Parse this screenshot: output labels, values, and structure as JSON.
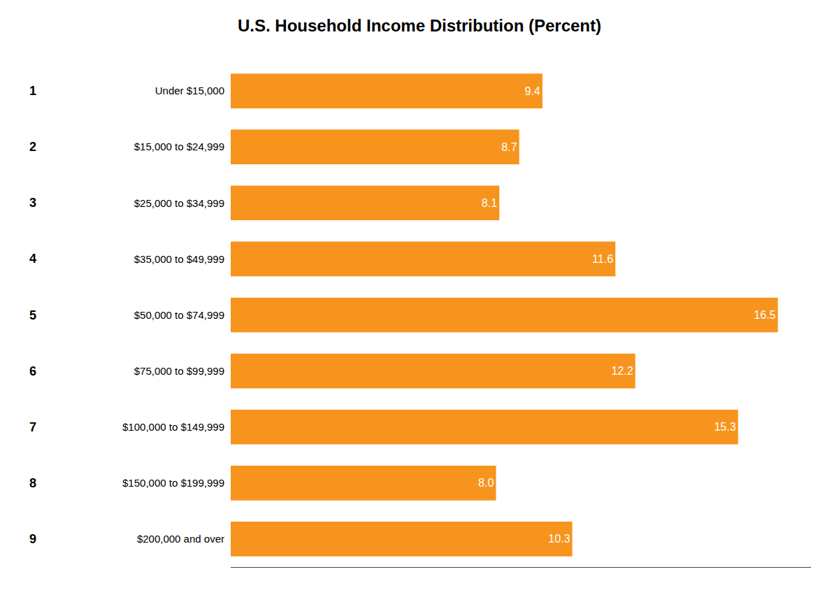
{
  "chart_data": {
    "type": "bar",
    "orientation": "horizontal",
    "title": "U.S. Household Income Distribution (Percent)",
    "categories": [
      "Under $15,000",
      "$15,000 to $24,999",
      "$25,000 to $34,999",
      "$35,000 to $49,999",
      "$50,000 to $74,999",
      "$75,000 to $99,999",
      "$100,000 to $149,999",
      "$150,000 to $199,999",
      "$200,000 and over"
    ],
    "row_numbers": [
      1,
      2,
      3,
      4,
      5,
      6,
      7,
      8,
      9
    ],
    "values": [
      9.4,
      8.7,
      8.1,
      11.6,
      16.5,
      12.2,
      15.3,
      8.0,
      10.3
    ],
    "value_labels": [
      "9.4",
      "8.7",
      "8.1",
      "11.6",
      "16.5",
      "12.2",
      "15.3",
      "8.0",
      "10.3"
    ],
    "color": "#F7941D",
    "xlim": [
      0,
      17.5
    ],
    "grid": false,
    "data_labels": true,
    "tick_labels": "y"
  }
}
